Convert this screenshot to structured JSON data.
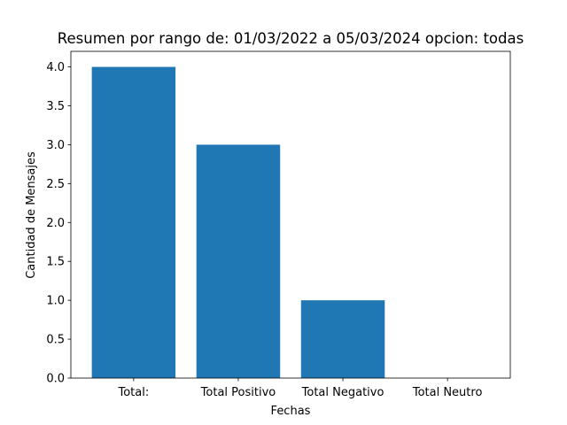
{
  "chart_data": {
    "type": "bar",
    "title": "Resumen  por rango de: 01/03/2022 a 05/03/2024 opcion: todas",
    "xlabel": "Fechas",
    "ylabel": "Cantidad de Mensajes",
    "categories": [
      "Total:",
      "Total Positivo",
      "Total Negativo",
      "Total Neutro"
    ],
    "values": [
      4,
      3,
      1,
      0
    ],
    "ylim": [
      0,
      4.2
    ],
    "yticks": [
      0.0,
      0.5,
      1.0,
      1.5,
      2.0,
      2.5,
      3.0,
      3.5,
      4.0
    ],
    "ytick_labels": [
      "0.0",
      "0.5",
      "1.0",
      "1.5",
      "2.0",
      "2.5",
      "3.0",
      "3.5",
      "4.0"
    ],
    "bar_color": "#1f77b4",
    "grid": false,
    "legend": "none"
  }
}
